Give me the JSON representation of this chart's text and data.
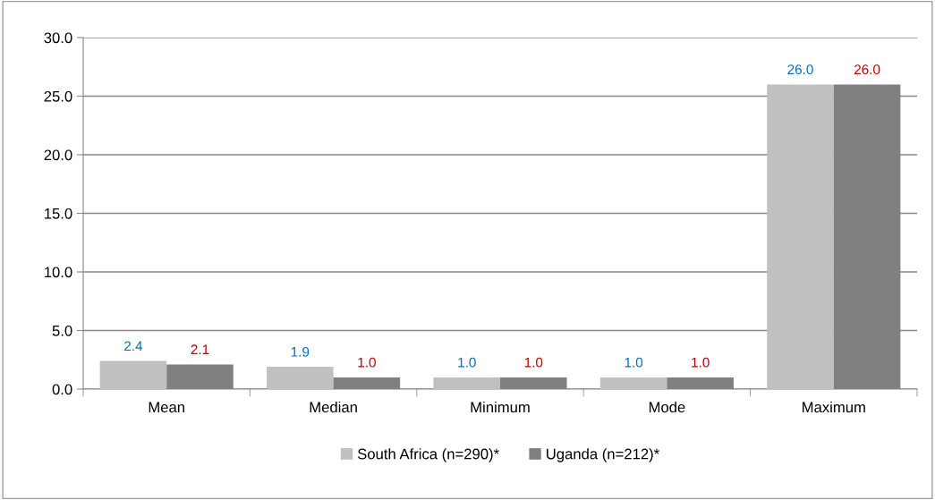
{
  "chart_data": {
    "type": "bar",
    "categories": [
      "Mean",
      "Median",
      "Minimum",
      "Mode",
      "Maximum"
    ],
    "series": [
      {
        "name": "South Africa (n=290)*",
        "color": "#c0c0c0",
        "values": [
          2.4,
          1.9,
          1.0,
          1.0,
          26.0
        ],
        "value_labels": [
          "2.4",
          "1.9",
          "1.0",
          "1.0",
          "26.0"
        ]
      },
      {
        "name": "Uganda (n=212)*",
        "color": "#808080",
        "values": [
          2.1,
          1.0,
          1.0,
          1.0,
          26.0
        ],
        "value_labels": [
          "2.1",
          "1.0",
          "1.0",
          "1.0",
          "26.0"
        ]
      }
    ],
    "ylim": [
      0,
      30
    ],
    "yticks": [
      {
        "value": 0,
        "label": "0.0"
      },
      {
        "value": 5,
        "label": "5.0"
      },
      {
        "value": 10,
        "label": "10.0"
      },
      {
        "value": 15,
        "label": "15.0"
      },
      {
        "value": 20,
        "label": "20.0"
      },
      {
        "value": 25,
        "label": "25.0"
      },
      {
        "value": 30,
        "label": "30.0"
      }
    ],
    "grid": "y",
    "legend": "bottom"
  }
}
